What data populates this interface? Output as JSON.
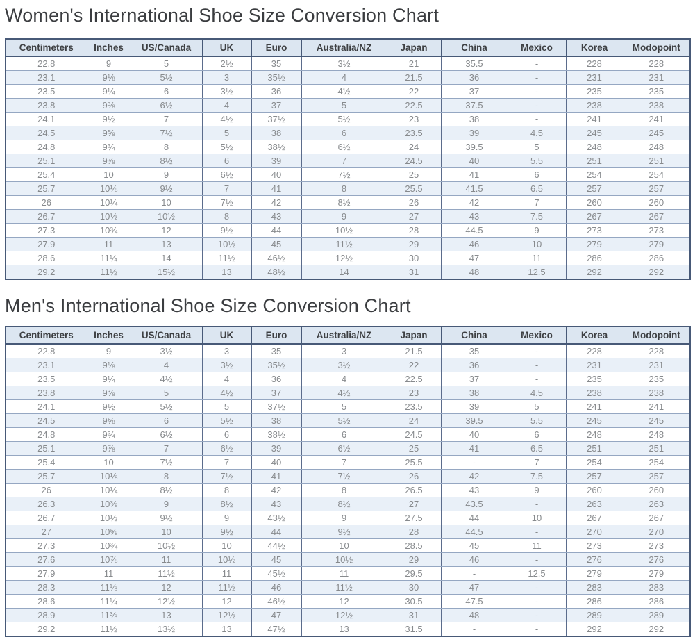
{
  "colors": {
    "title_text": "#3b3d40",
    "header_bg": "#dce6f1",
    "header_text": "#3e4043",
    "row_bg": "#ffffff",
    "row_alt_bg": "#e9f0f8",
    "cell_text": "#878a8d",
    "border_outer": "#475977",
    "border_grid_v": "#5b6c8c",
    "border_grid_h": "#95a7c2"
  },
  "tables": [
    {
      "title": "Women's International Shoe Size Conversion Chart",
      "columns": [
        "Centimeters",
        "Inches",
        "US/Canada",
        "UK",
        "Euro",
        "Australia/NZ",
        "Japan",
        "China",
        "Mexico",
        "Korea",
        "Modopoint"
      ],
      "rows": [
        [
          "22.8",
          "9",
          "5",
          "2½",
          "35",
          "3½",
          "21",
          "35.5",
          "-",
          "228",
          "228"
        ],
        [
          "23.1",
          "9⅛",
          "5½",
          "3",
          "35½",
          "4",
          "21.5",
          "36",
          "-",
          "231",
          "231"
        ],
        [
          "23.5",
          "9¼",
          "6",
          "3½",
          "36",
          "4½",
          "22",
          "37",
          "-",
          "235",
          "235"
        ],
        [
          "23.8",
          "9⅜",
          "6½",
          "4",
          "37",
          "5",
          "22.5",
          "37.5",
          "-",
          "238",
          "238"
        ],
        [
          "24.1",
          "9½",
          "7",
          "4½",
          "37½",
          "5½",
          "23",
          "38",
          "-",
          "241",
          "241"
        ],
        [
          "24.5",
          "9⅝",
          "7½",
          "5",
          "38",
          "6",
          "23.5",
          "39",
          "4.5",
          "245",
          "245"
        ],
        [
          "24.8",
          "9¾",
          "8",
          "5½",
          "38½",
          "6½",
          "24",
          "39.5",
          "5",
          "248",
          "248"
        ],
        [
          "25.1",
          "9⅞",
          "8½",
          "6",
          "39",
          "7",
          "24.5",
          "40",
          "5.5",
          "251",
          "251"
        ],
        [
          "25.4",
          "10",
          "9",
          "6½",
          "40",
          "7½",
          "25",
          "41",
          "6",
          "254",
          "254"
        ],
        [
          "25.7",
          "10⅛",
          "9½",
          "7",
          "41",
          "8",
          "25.5",
          "41.5",
          "6.5",
          "257",
          "257"
        ],
        [
          "26",
          "10¼",
          "10",
          "7½",
          "42",
          "8½",
          "26",
          "42",
          "7",
          "260",
          "260"
        ],
        [
          "26.7",
          "10½",
          "10½",
          "8",
          "43",
          "9",
          "27",
          "43",
          "7.5",
          "267",
          "267"
        ],
        [
          "27.3",
          "10¾",
          "12",
          "9½",
          "44",
          "10½",
          "28",
          "44.5",
          "9",
          "273",
          "273"
        ],
        [
          "27.9",
          "11",
          "13",
          "10½",
          "45",
          "11½",
          "29",
          "46",
          "10",
          "279",
          "279"
        ],
        [
          "28.6",
          "11¼",
          "14",
          "11½",
          "46½",
          "12½",
          "30",
          "47",
          "11",
          "286",
          "286"
        ],
        [
          "29.2",
          "11½",
          "15½",
          "13",
          "48½",
          "14",
          "31",
          "48",
          "12.5",
          "292",
          "292"
        ]
      ]
    },
    {
      "title": "Men's International Shoe Size Conversion Chart",
      "columns": [
        "Centimeters",
        "Inches",
        "US/Canada",
        "UK",
        "Euro",
        "Australia/NZ",
        "Japan",
        "China",
        "Mexico",
        "Korea",
        "Modopoint"
      ],
      "rows": [
        [
          "22.8",
          "9",
          "3½",
          "3",
          "35",
          "3",
          "21.5",
          "35",
          "-",
          "228",
          "228"
        ],
        [
          "23.1",
          "9⅛",
          "4",
          "3½",
          "35½",
          "3½",
          "22",
          "36",
          "-",
          "231",
          "231"
        ],
        [
          "23.5",
          "9¼",
          "4½",
          "4",
          "36",
          "4",
          "22.5",
          "37",
          "-",
          "235",
          "235"
        ],
        [
          "23.8",
          "9⅜",
          "5",
          "4½",
          "37",
          "4½",
          "23",
          "38",
          "4.5",
          "238",
          "238"
        ],
        [
          "24.1",
          "9½",
          "5½",
          "5",
          "37½",
          "5",
          "23.5",
          "39",
          "5",
          "241",
          "241"
        ],
        [
          "24.5",
          "9⅝",
          "6",
          "5½",
          "38",
          "5½",
          "24",
          "39.5",
          "5.5",
          "245",
          "245"
        ],
        [
          "24.8",
          "9¾",
          "6½",
          "6",
          "38½",
          "6",
          "24.5",
          "40",
          "6",
          "248",
          "248"
        ],
        [
          "25.1",
          "9⅞",
          "7",
          "6½",
          "39",
          "6½",
          "25",
          "41",
          "6.5",
          "251",
          "251"
        ],
        [
          "25.4",
          "10",
          "7½",
          "7",
          "40",
          "7",
          "25.5",
          "-",
          "7",
          "254",
          "254"
        ],
        [
          "25.7",
          "10⅛",
          "8",
          "7½",
          "41",
          "7½",
          "26",
          "42",
          "7.5",
          "257",
          "257"
        ],
        [
          "26",
          "10¼",
          "8½",
          "8",
          "42",
          "8",
          "26.5",
          "43",
          "9",
          "260",
          "260"
        ],
        [
          "26.3",
          "10⅜",
          "9",
          "8½",
          "43",
          "8½",
          "27",
          "43.5",
          "-",
          "263",
          "263"
        ],
        [
          "26.7",
          "10½",
          "9½",
          "9",
          "43½",
          "9",
          "27.5",
          "44",
          "10",
          "267",
          "267"
        ],
        [
          "27",
          "10⅝",
          "10",
          "9½",
          "44",
          "9½",
          "28",
          "44.5",
          "-",
          "270",
          "270"
        ],
        [
          "27.3",
          "10¾",
          "10½",
          "10",
          "44½",
          "10",
          "28.5",
          "45",
          "11",
          "273",
          "273"
        ],
        [
          "27.6",
          "10⅞",
          "11",
          "10½",
          "45",
          "10½",
          "29",
          "46",
          "-",
          "276",
          "276"
        ],
        [
          "27.9",
          "11",
          "11½",
          "11",
          "45½",
          "11",
          "29.5",
          "-",
          "12.5",
          "279",
          "279"
        ],
        [
          "28.3",
          "11⅛",
          "12",
          "11½",
          "46",
          "11½",
          "30",
          "47",
          "-",
          "283",
          "283"
        ],
        [
          "28.6",
          "11¼",
          "12½",
          "12",
          "46½",
          "12",
          "30.5",
          "47.5",
          "-",
          "286",
          "286"
        ],
        [
          "28.9",
          "11⅜",
          "13",
          "12½",
          "47",
          "12½",
          "31",
          "48",
          "-",
          "289",
          "289"
        ],
        [
          "29.2",
          "11½",
          "13½",
          "13",
          "47½",
          "13",
          "31.5",
          "-",
          "-",
          "292",
          "292"
        ]
      ]
    }
  ]
}
